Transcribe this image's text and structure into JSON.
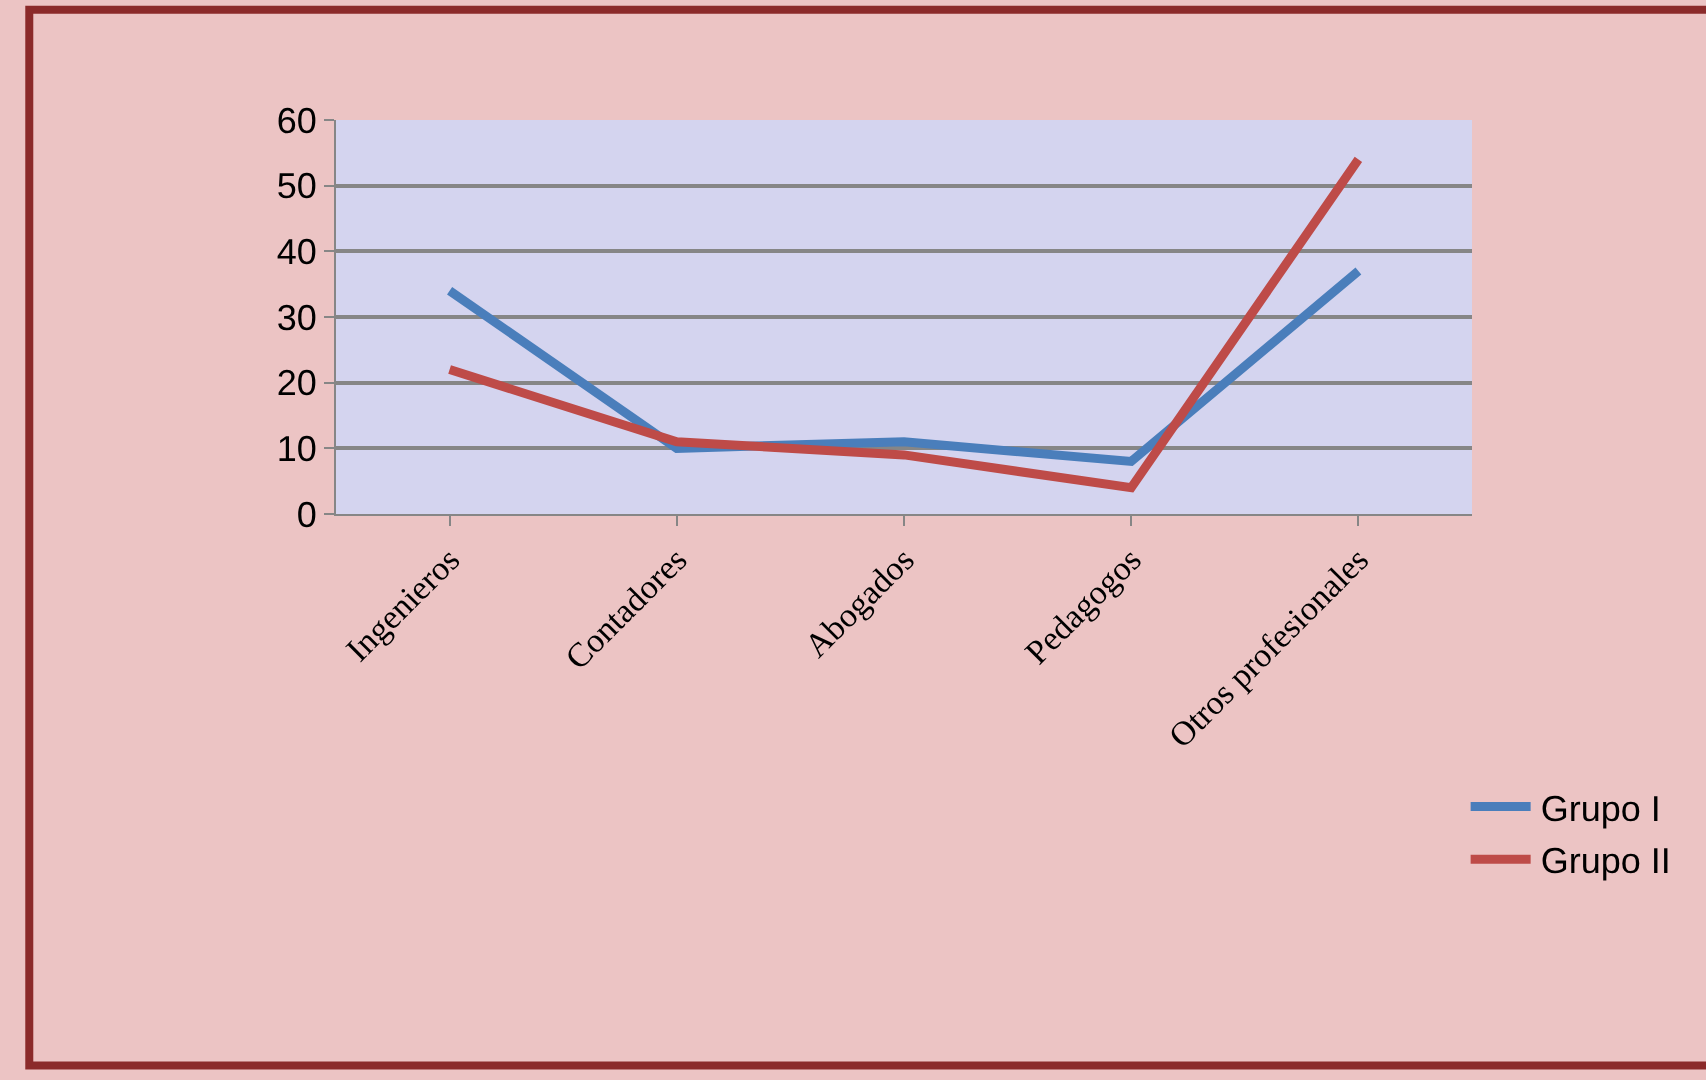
{
  "chart_data": {
    "type": "line",
    "categories": [
      "Ingenieros",
      "Contadores",
      "Abogados",
      "Pedagogos",
      "Otros profesionales"
    ],
    "series": [
      {
        "name": "Grupo I",
        "color": "#4a7ebb",
        "values": [
          34,
          10,
          11,
          8,
          37
        ]
      },
      {
        "name": "Grupo II",
        "color": "#be4b48",
        "values": [
          22,
          11,
          9,
          4,
          54
        ]
      }
    ],
    "ylim": [
      0,
      60
    ],
    "yticks": [
      0,
      10,
      20,
      30,
      40,
      50,
      60
    ],
    "grid": "y",
    "legend": "right",
    "marker": "none",
    "line_style": "solid"
  }
}
